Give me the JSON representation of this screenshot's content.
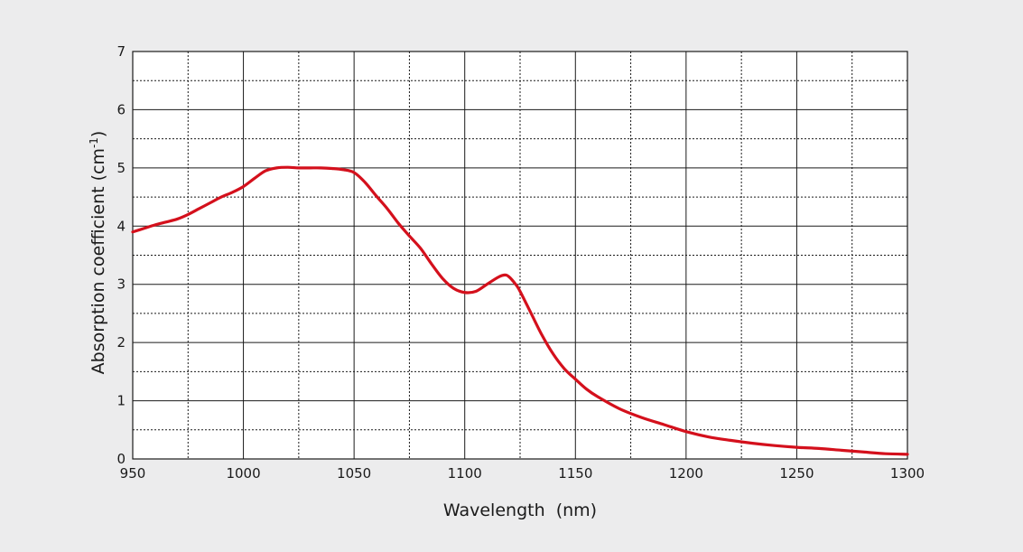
{
  "colors": {
    "background": "#ececed",
    "plot_background": "#ffffff",
    "grid": "#1a1a1a",
    "curve": "#d4101c",
    "text": "#1a1a1a"
  },
  "chart_data": {
    "type": "line",
    "title": "",
    "xlabel": "Wavelength  (nm)",
    "ylabel_main": "Absorption coefficient (cm",
    "ylabel_sup": "-1",
    "ylabel_close": ")",
    "xlim": [
      950,
      1300
    ],
    "ylim": [
      0,
      7
    ],
    "x_ticks": [
      950,
      1000,
      1050,
      1100,
      1150,
      1200,
      1250,
      1300
    ],
    "y_ticks": [
      0,
      1,
      2,
      3,
      4,
      5,
      6,
      7
    ],
    "x_minor_step": 25,
    "y_minor_step": 0.5,
    "grid": true,
    "legend": "none",
    "series": [
      {
        "x": [
          950,
          955,
          960,
          965,
          970,
          975,
          980,
          985,
          990,
          995,
          1000,
          1005,
          1010,
          1015,
          1020,
          1025,
          1030,
          1035,
          1040,
          1045,
          1050,
          1055,
          1060,
          1065,
          1070,
          1075,
          1080,
          1085,
          1090,
          1095,
          1100,
          1105,
          1110,
          1115,
          1118,
          1120,
          1123,
          1125,
          1130,
          1135,
          1140,
          1145,
          1150,
          1155,
          1160,
          1170,
          1180,
          1190,
          1200,
          1210,
          1220,
          1230,
          1240,
          1250,
          1260,
          1270,
          1280,
          1290,
          1300
        ],
        "y": [
          3.9,
          3.96,
          4.02,
          4.07,
          4.12,
          4.2,
          4.3,
          4.4,
          4.5,
          4.58,
          4.68,
          4.82,
          4.95,
          5.0,
          5.01,
          5.0,
          5.0,
          5.0,
          4.99,
          4.97,
          4.92,
          4.75,
          4.52,
          4.3,
          4.05,
          3.83,
          3.62,
          3.35,
          3.1,
          2.93,
          2.86,
          2.88,
          3.0,
          3.12,
          3.16,
          3.13,
          3.0,
          2.88,
          2.5,
          2.12,
          1.8,
          1.55,
          1.37,
          1.2,
          1.07,
          0.86,
          0.71,
          0.59,
          0.47,
          0.38,
          0.32,
          0.27,
          0.23,
          0.2,
          0.18,
          0.15,
          0.12,
          0.09,
          0.08
        ]
      }
    ]
  }
}
